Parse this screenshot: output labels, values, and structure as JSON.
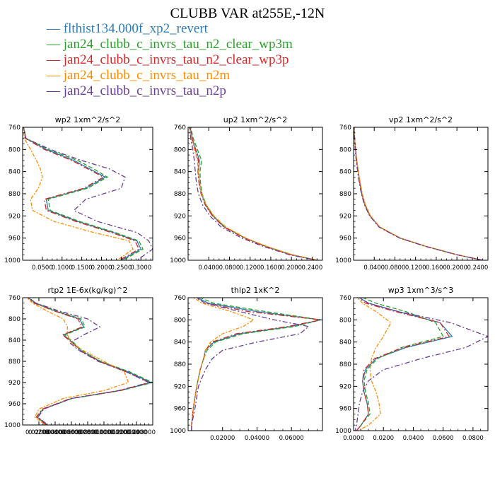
{
  "title": "CLUBB VAR at255E,-12N",
  "legend": [
    {
      "dash": "—",
      "label": "flthist134.000f_xp2_revert",
      "color": "#2c7bb6"
    },
    {
      "dash": "—",
      "label": "jan24_clubb_c_invrs_tau_n2_clear_wp3m",
      "color": "#2ca02c"
    },
    {
      "dash": "—",
      "label": "jan24_clubb_c_invrs_tau_n2_clear_wp3p",
      "color": "#d62728"
    },
    {
      "dash": "—",
      "label": "jan24_clubb_c_invrs_tau_n2m",
      "color": "#ff8c00"
    },
    {
      "dash": "—",
      "label": "jan24_clubb_c_invrs_tau_n2p",
      "color": "#6a3d9a"
    }
  ],
  "chart_data": [
    {
      "type": "line",
      "title": "wp2   1xm^2/s^2",
      "xlim": [
        0.0,
        0.33
      ],
      "ylim": [
        760,
        1000
      ],
      "xticks": [
        0.05,
        0.1,
        0.15,
        0.2,
        0.25,
        0.3
      ],
      "xtick_labels": [
        "0.0500",
        "0.1000",
        "0.1500",
        "0.2000",
        "0.2500",
        "0.3000"
      ],
      "yticks": [
        760,
        800,
        840,
        880,
        920,
        960,
        1000
      ],
      "ytick_labels": [
        "760",
        "800",
        "840",
        "880",
        "920",
        "960",
        "1000"
      ],
      "y": [
        755,
        780,
        800,
        820,
        835,
        850,
        870,
        890,
        910,
        930,
        950,
        965,
        980,
        1000
      ],
      "series": [
        {
          "name": "flthist134.000f_xp2_revert",
          "x": [
            0.001,
            0.008,
            0.06,
            0.13,
            0.17,
            0.21,
            0.16,
            0.06,
            0.065,
            0.14,
            0.23,
            0.29,
            0.3,
            0.25
          ]
        },
        {
          "name": "jan24_clubb_c_invrs_tau_n2_clear_wp3m",
          "x": [
            0.001,
            0.009,
            0.065,
            0.14,
            0.18,
            0.215,
            0.165,
            0.065,
            0.07,
            0.145,
            0.235,
            0.295,
            0.305,
            0.255
          ]
        },
        {
          "name": "jan24_clubb_c_invrs_tau_n2_clear_wp3p",
          "x": [
            0.001,
            0.007,
            0.055,
            0.125,
            0.165,
            0.205,
            0.155,
            0.055,
            0.06,
            0.135,
            0.225,
            0.285,
            0.295,
            0.245
          ]
        },
        {
          "name": "jan24_clubb_c_invrs_tau_n2m",
          "x": [
            0.001,
            0.004,
            0.02,
            0.035,
            0.045,
            0.05,
            0.04,
            0.02,
            0.025,
            0.08,
            0.18,
            0.27,
            0.28,
            0.24
          ]
        },
        {
          "name": "jan24_clubb_c_invrs_tau_n2p",
          "x": [
            0.001,
            0.008,
            0.07,
            0.15,
            0.22,
            0.26,
            0.25,
            0.16,
            0.13,
            0.19,
            0.29,
            0.32,
            0.33,
            0.29
          ]
        }
      ]
    },
    {
      "type": "line",
      "title": "up2   1xm^2/s^2",
      "xlim": [
        0.0,
        0.26
      ],
      "ylim": [
        760,
        1000
      ],
      "xticks": [
        0.04,
        0.08,
        0.12,
        0.16,
        0.2,
        0.24
      ],
      "xtick_labels": [
        "0.0400",
        "0.0800",
        "0.1200",
        "0.1600",
        "0.2000",
        "0.2400"
      ],
      "yticks": [
        760,
        800,
        840,
        880,
        920,
        960,
        1000
      ],
      "ytick_labels": [
        "760",
        "800",
        "840",
        "880",
        "920",
        "960",
        "1000"
      ],
      "y": [
        755,
        780,
        800,
        820,
        840,
        860,
        880,
        900,
        920,
        940,
        960,
        975,
        990,
        1000
      ],
      "series": [
        {
          "name": "flthist134.000f_xp2_revert",
          "x": [
            0.003,
            0.008,
            0.015,
            0.022,
            0.02,
            0.022,
            0.026,
            0.034,
            0.048,
            0.07,
            0.11,
            0.15,
            0.2,
            0.25
          ]
        },
        {
          "name": "jan24_clubb_c_invrs_tau_n2_clear_wp3m",
          "x": [
            0.004,
            0.01,
            0.018,
            0.026,
            0.023,
            0.024,
            0.027,
            0.035,
            0.049,
            0.071,
            0.111,
            0.151,
            0.201,
            0.25
          ]
        },
        {
          "name": "jan24_clubb_c_invrs_tau_n2_clear_wp3p",
          "x": [
            0.003,
            0.008,
            0.014,
            0.02,
            0.019,
            0.021,
            0.025,
            0.033,
            0.047,
            0.069,
            0.109,
            0.149,
            0.199,
            0.249
          ]
        },
        {
          "name": "jan24_clubb_c_invrs_tau_n2m",
          "x": [
            0.002,
            0.006,
            0.012,
            0.018,
            0.02,
            0.022,
            0.026,
            0.035,
            0.05,
            0.073,
            0.112,
            0.152,
            0.202,
            0.25
          ]
        },
        {
          "name": "jan24_clubb_c_invrs_tau_n2p",
          "x": [
            0.002,
            0.005,
            0.009,
            0.012,
            0.014,
            0.016,
            0.02,
            0.028,
            0.042,
            0.064,
            0.104,
            0.145,
            0.196,
            0.248
          ]
        }
      ]
    },
    {
      "type": "line",
      "title": "vp2   1xm^2/s^2",
      "xlim": [
        0.0,
        0.26
      ],
      "ylim": [
        760,
        1000
      ],
      "xticks": [
        0.04,
        0.08,
        0.12,
        0.16,
        0.2,
        0.24
      ],
      "xtick_labels": [
        "0.0400",
        "0.0800",
        "0.1200",
        "0.1600",
        "0.2000",
        "0.2400"
      ],
      "yticks": [
        760,
        800,
        840,
        880,
        920,
        960,
        1000
      ],
      "ytick_labels": [
        "760",
        "800",
        "840",
        "880",
        "920",
        "960",
        "1000"
      ],
      "y": [
        755,
        780,
        800,
        820,
        840,
        860,
        880,
        900,
        920,
        940,
        960,
        975,
        990,
        1000
      ],
      "series": [
        {
          "name": "flthist134.000f_xp2_revert",
          "x": [
            0.001,
            0.002,
            0.004,
            0.006,
            0.009,
            0.012,
            0.016,
            0.022,
            0.032,
            0.05,
            0.09,
            0.14,
            0.2,
            0.25
          ]
        },
        {
          "name": "jan24_clubb_c_invrs_tau_n2_clear_wp3m",
          "x": [
            0.001,
            0.002,
            0.004,
            0.006,
            0.009,
            0.012,
            0.016,
            0.022,
            0.032,
            0.05,
            0.09,
            0.14,
            0.2,
            0.25
          ]
        },
        {
          "name": "jan24_clubb_c_invrs_tau_n2_clear_wp3p",
          "x": [
            0.001,
            0.002,
            0.004,
            0.006,
            0.009,
            0.012,
            0.016,
            0.022,
            0.032,
            0.05,
            0.09,
            0.14,
            0.2,
            0.25
          ]
        },
        {
          "name": "jan24_clubb_c_invrs_tau_n2m",
          "x": [
            0.001,
            0.002,
            0.004,
            0.006,
            0.009,
            0.013,
            0.017,
            0.023,
            0.033,
            0.051,
            0.091,
            0.141,
            0.2,
            0.25
          ]
        },
        {
          "name": "jan24_clubb_c_invrs_tau_n2p",
          "x": [
            0.001,
            0.002,
            0.003,
            0.005,
            0.008,
            0.011,
            0.015,
            0.021,
            0.031,
            0.049,
            0.089,
            0.139,
            0.199,
            0.25
          ]
        }
      ]
    },
    {
      "type": "line",
      "title": "rtp2   1E-6x(kg/kg)^2",
      "xlim": [
        0.0,
        0.16
      ],
      "ylim": [
        760,
        1000
      ],
      "xticks": [
        0.02,
        0.04,
        0.06,
        0.08,
        0.1,
        0.12,
        0.14
      ],
      "xtick_labels": [
        "0.0200",
        "0.0400",
        "0.0600",
        "0.0800",
        "0.1000",
        "0.1200",
        "0.1400"
      ],
      "xtick_overlay": [
        "0.0200000",
        "0.0400000",
        "0.0600000",
        "0.0800000",
        "0.1000000",
        "0.1200000",
        "0.1400000"
      ],
      "yticks": [
        760,
        800,
        840,
        880,
        920,
        960,
        1000
      ],
      "ytick_labels": [
        "760",
        "800",
        "840",
        "880",
        "920",
        "960",
        "1000"
      ],
      "y": [
        755,
        770,
        785,
        800,
        815,
        830,
        845,
        860,
        880,
        900,
        920,
        935,
        950,
        970,
        985,
        1000
      ],
      "series": [
        {
          "name": "flthist134.000f_xp2_revert",
          "x": [
            0.003,
            0.015,
            0.04,
            0.07,
            0.075,
            0.05,
            0.062,
            0.072,
            0.095,
            0.13,
            0.158,
            0.12,
            0.06,
            0.025,
            0.018,
            0.03
          ]
        },
        {
          "name": "jan24_clubb_c_invrs_tau_n2_clear_wp3m",
          "x": [
            0.004,
            0.016,
            0.042,
            0.072,
            0.077,
            0.052,
            0.063,
            0.073,
            0.096,
            0.132,
            0.16,
            0.121,
            0.061,
            0.025,
            0.018,
            0.03
          ]
        },
        {
          "name": "jan24_clubb_c_invrs_tau_n2_clear_wp3p",
          "x": [
            0.003,
            0.014,
            0.039,
            0.068,
            0.073,
            0.049,
            0.061,
            0.071,
            0.094,
            0.128,
            0.156,
            0.119,
            0.059,
            0.024,
            0.017,
            0.029
          ]
        },
        {
          "name": "jan24_clubb_c_invrs_tau_n2m",
          "x": [
            0.002,
            0.012,
            0.03,
            0.05,
            0.055,
            0.055,
            0.06,
            0.075,
            0.1,
            0.125,
            0.13,
            0.1,
            0.05,
            0.02,
            0.015,
            0.028
          ]
        },
        {
          "name": "jan24_clubb_c_invrs_tau_n2p",
          "x": [
            0.003,
            0.016,
            0.045,
            0.08,
            0.095,
            0.075,
            0.058,
            0.07,
            0.093,
            0.128,
            0.155,
            0.118,
            0.06,
            0.026,
            0.019,
            0.031
          ]
        }
      ]
    },
    {
      "type": "line",
      "title": "thlp2   1xK^2",
      "xlim": [
        0.0,
        0.078
      ],
      "ylim": [
        760,
        1000
      ],
      "xticks": [
        0.02,
        0.04,
        0.06
      ],
      "xtick_labels": [
        "0.02000",
        "0.04000",
        "0.06000"
      ],
      "yticks": [
        760,
        800,
        840,
        880,
        920,
        960,
        1000
      ],
      "ytick_labels": [
        "760",
        "800",
        "840",
        "880",
        "920",
        "960",
        "1000"
      ],
      "y": [
        755,
        770,
        785,
        800,
        812,
        825,
        840,
        855,
        870,
        890,
        920,
        960,
        990,
        1000
      ],
      "series": [
        {
          "name": "flthist134.000f_xp2_revert",
          "x": [
            0.002,
            0.012,
            0.04,
            0.077,
            0.06,
            0.03,
            0.015,
            0.01,
            0.009,
            0.007,
            0.005,
            0.003,
            0.002,
            0.002
          ]
        },
        {
          "name": "jan24_clubb_c_invrs_tau_n2_clear_wp3m",
          "x": [
            0.003,
            0.015,
            0.045,
            0.077,
            0.062,
            0.032,
            0.016,
            0.011,
            0.009,
            0.007,
            0.005,
            0.003,
            0.002,
            0.002
          ]
        },
        {
          "name": "jan24_clubb_c_invrs_tau_n2_clear_wp3p",
          "x": [
            0.002,
            0.01,
            0.035,
            0.077,
            0.058,
            0.028,
            0.014,
            0.01,
            0.009,
            0.007,
            0.005,
            0.003,
            0.002,
            0.002
          ]
        },
        {
          "name": "jan24_clubb_c_invrs_tau_n2m",
          "x": [
            0.001,
            0.008,
            0.025,
            0.038,
            0.032,
            0.02,
            0.013,
            0.01,
            0.009,
            0.007,
            0.005,
            0.003,
            0.002,
            0.002
          ]
        },
        {
          "name": "jan24_clubb_c_invrs_tau_n2p",
          "x": [
            0.002,
            0.01,
            0.03,
            0.05,
            0.07,
            0.065,
            0.04,
            0.02,
            0.014,
            0.01,
            0.006,
            0.004,
            0.002,
            0.002
          ]
        }
      ]
    },
    {
      "type": "line",
      "title": "wp3   1xm^3/s^3",
      "xlim": [
        0.0,
        0.09
      ],
      "ylim": [
        760,
        1000
      ],
      "xticks": [
        0.0,
        0.02,
        0.04,
        0.06,
        0.08
      ],
      "xtick_labels": [
        "0.0000",
        "0.0200",
        "0.0400",
        "0.0600",
        "0.0800"
      ],
      "yticks": [
        760,
        800,
        840,
        880,
        920,
        960,
        1000
      ],
      "ytick_labels": [
        "760",
        "800",
        "840",
        "880",
        "920",
        "960",
        "1000"
      ],
      "y": [
        755,
        770,
        785,
        805,
        830,
        850,
        870,
        890,
        910,
        930,
        950,
        970,
        990,
        1000
      ],
      "series": [
        {
          "name": "flthist134.000f_xp2_revert",
          "x": [
            0.001,
            0.01,
            0.03,
            0.058,
            0.066,
            0.035,
            0.015,
            0.008,
            0.006,
            0.007,
            0.009,
            0.01,
            0.005,
            0.002
          ]
        },
        {
          "name": "jan24_clubb_c_invrs_tau_n2_clear_wp3m",
          "x": [
            0.002,
            0.015,
            0.035,
            0.055,
            0.06,
            0.032,
            0.016,
            0.009,
            0.007,
            0.008,
            0.01,
            0.011,
            0.005,
            0.002
          ]
        },
        {
          "name": "jan24_clubb_c_invrs_tau_n2_clear_wp3p",
          "x": [
            0.001,
            0.008,
            0.028,
            0.058,
            0.064,
            0.033,
            0.014,
            0.007,
            0.006,
            0.007,
            0.009,
            0.01,
            0.005,
            0.002
          ]
        },
        {
          "name": "jan24_clubb_c_invrs_tau_n2m",
          "x": [
            0.001,
            0.006,
            0.015,
            0.025,
            0.02,
            0.015,
            0.012,
            0.011,
            0.012,
            0.015,
            0.017,
            0.018,
            0.01,
            0.003
          ]
        },
        {
          "name": "jan24_clubb_c_invrs_tau_n2p",
          "x": [
            0.001,
            0.01,
            0.03,
            0.065,
            0.09,
            0.075,
            0.045,
            0.02,
            0.01,
            0.006,
            0.004,
            0.003,
            0.002,
            0.001
          ]
        }
      ]
    }
  ]
}
